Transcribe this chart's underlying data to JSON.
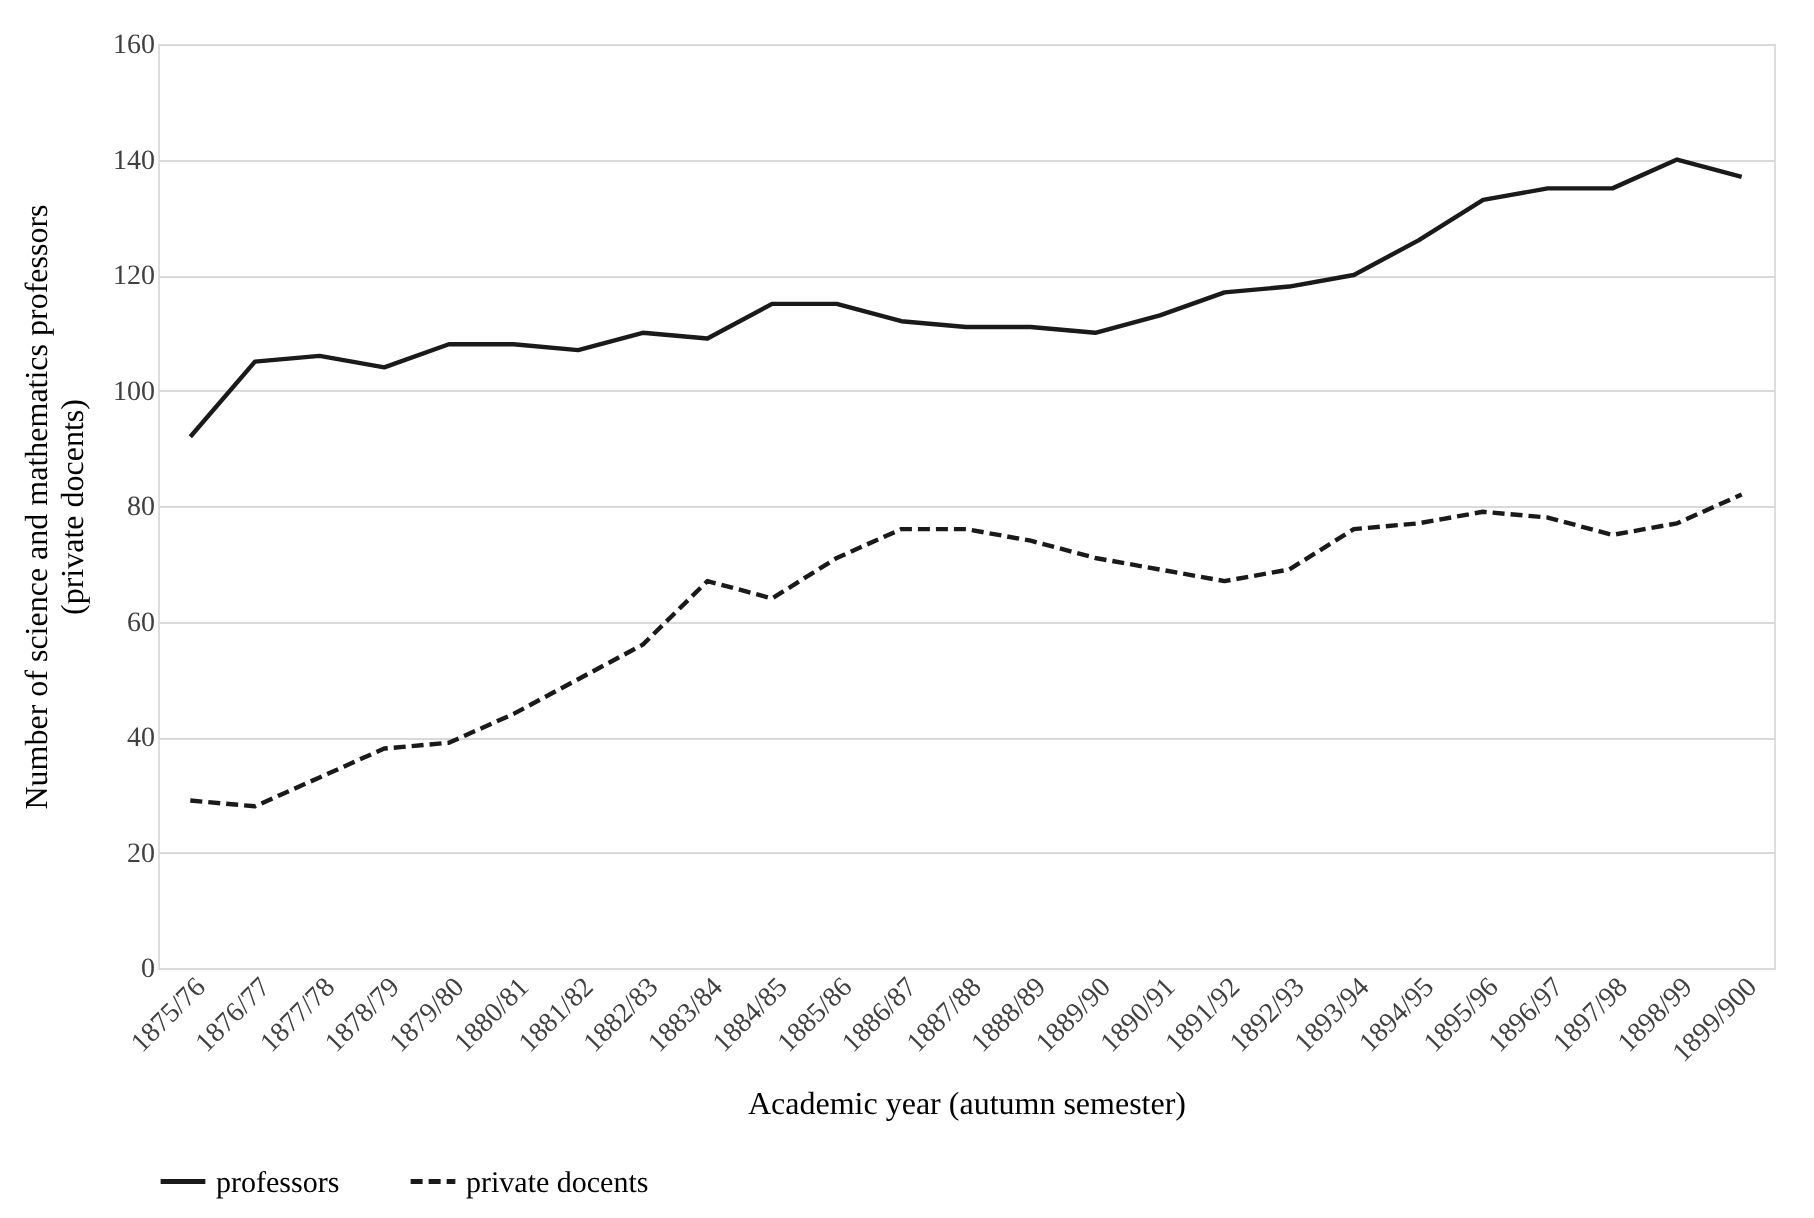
{
  "chart_data": {
    "type": "line",
    "xlabel": "Academic year (autumn semester)",
    "ylabel": "Number of science and mathematics professors (private docents)",
    "categories": [
      "1875/76",
      "1876/77",
      "1877/78",
      "1878/79",
      "1879/80",
      "1880/81",
      "1881/82",
      "1882/83",
      "1883/84",
      "1884/85",
      "1885/86",
      "1886/87",
      "1887/88",
      "1888/89",
      "1889/90",
      "1890/91",
      "1891/92",
      "1892/93",
      "1893/94",
      "1894/95",
      "1895/96",
      "1896/97",
      "1897/98",
      "1898/99",
      "1899/900"
    ],
    "series": [
      {
        "name": "professors",
        "color": "#1a1a1a",
        "line_style": "solid",
        "values": [
          92,
          105,
          106,
          104,
          108,
          108,
          107,
          110,
          109,
          115,
          115,
          112,
          111,
          111,
          110,
          113,
          117,
          118,
          120,
          126,
          133,
          135,
          135,
          140,
          137
        ]
      },
      {
        "name": "private docents",
        "color": "#1a1a1a",
        "line_style": "dashed",
        "values": [
          29,
          28,
          33,
          38,
          39,
          44,
          50,
          56,
          67,
          64,
          71,
          76,
          76,
          74,
          71,
          69,
          67,
          69,
          76,
          77,
          79,
          78,
          75,
          77,
          82
        ]
      }
    ],
    "ylim": [
      0,
      160
    ],
    "yticks": [
      0,
      20,
      40,
      60,
      80,
      100,
      120,
      140,
      160
    ],
    "grid": "y",
    "legend": "bottom",
    "marker": "none"
  }
}
